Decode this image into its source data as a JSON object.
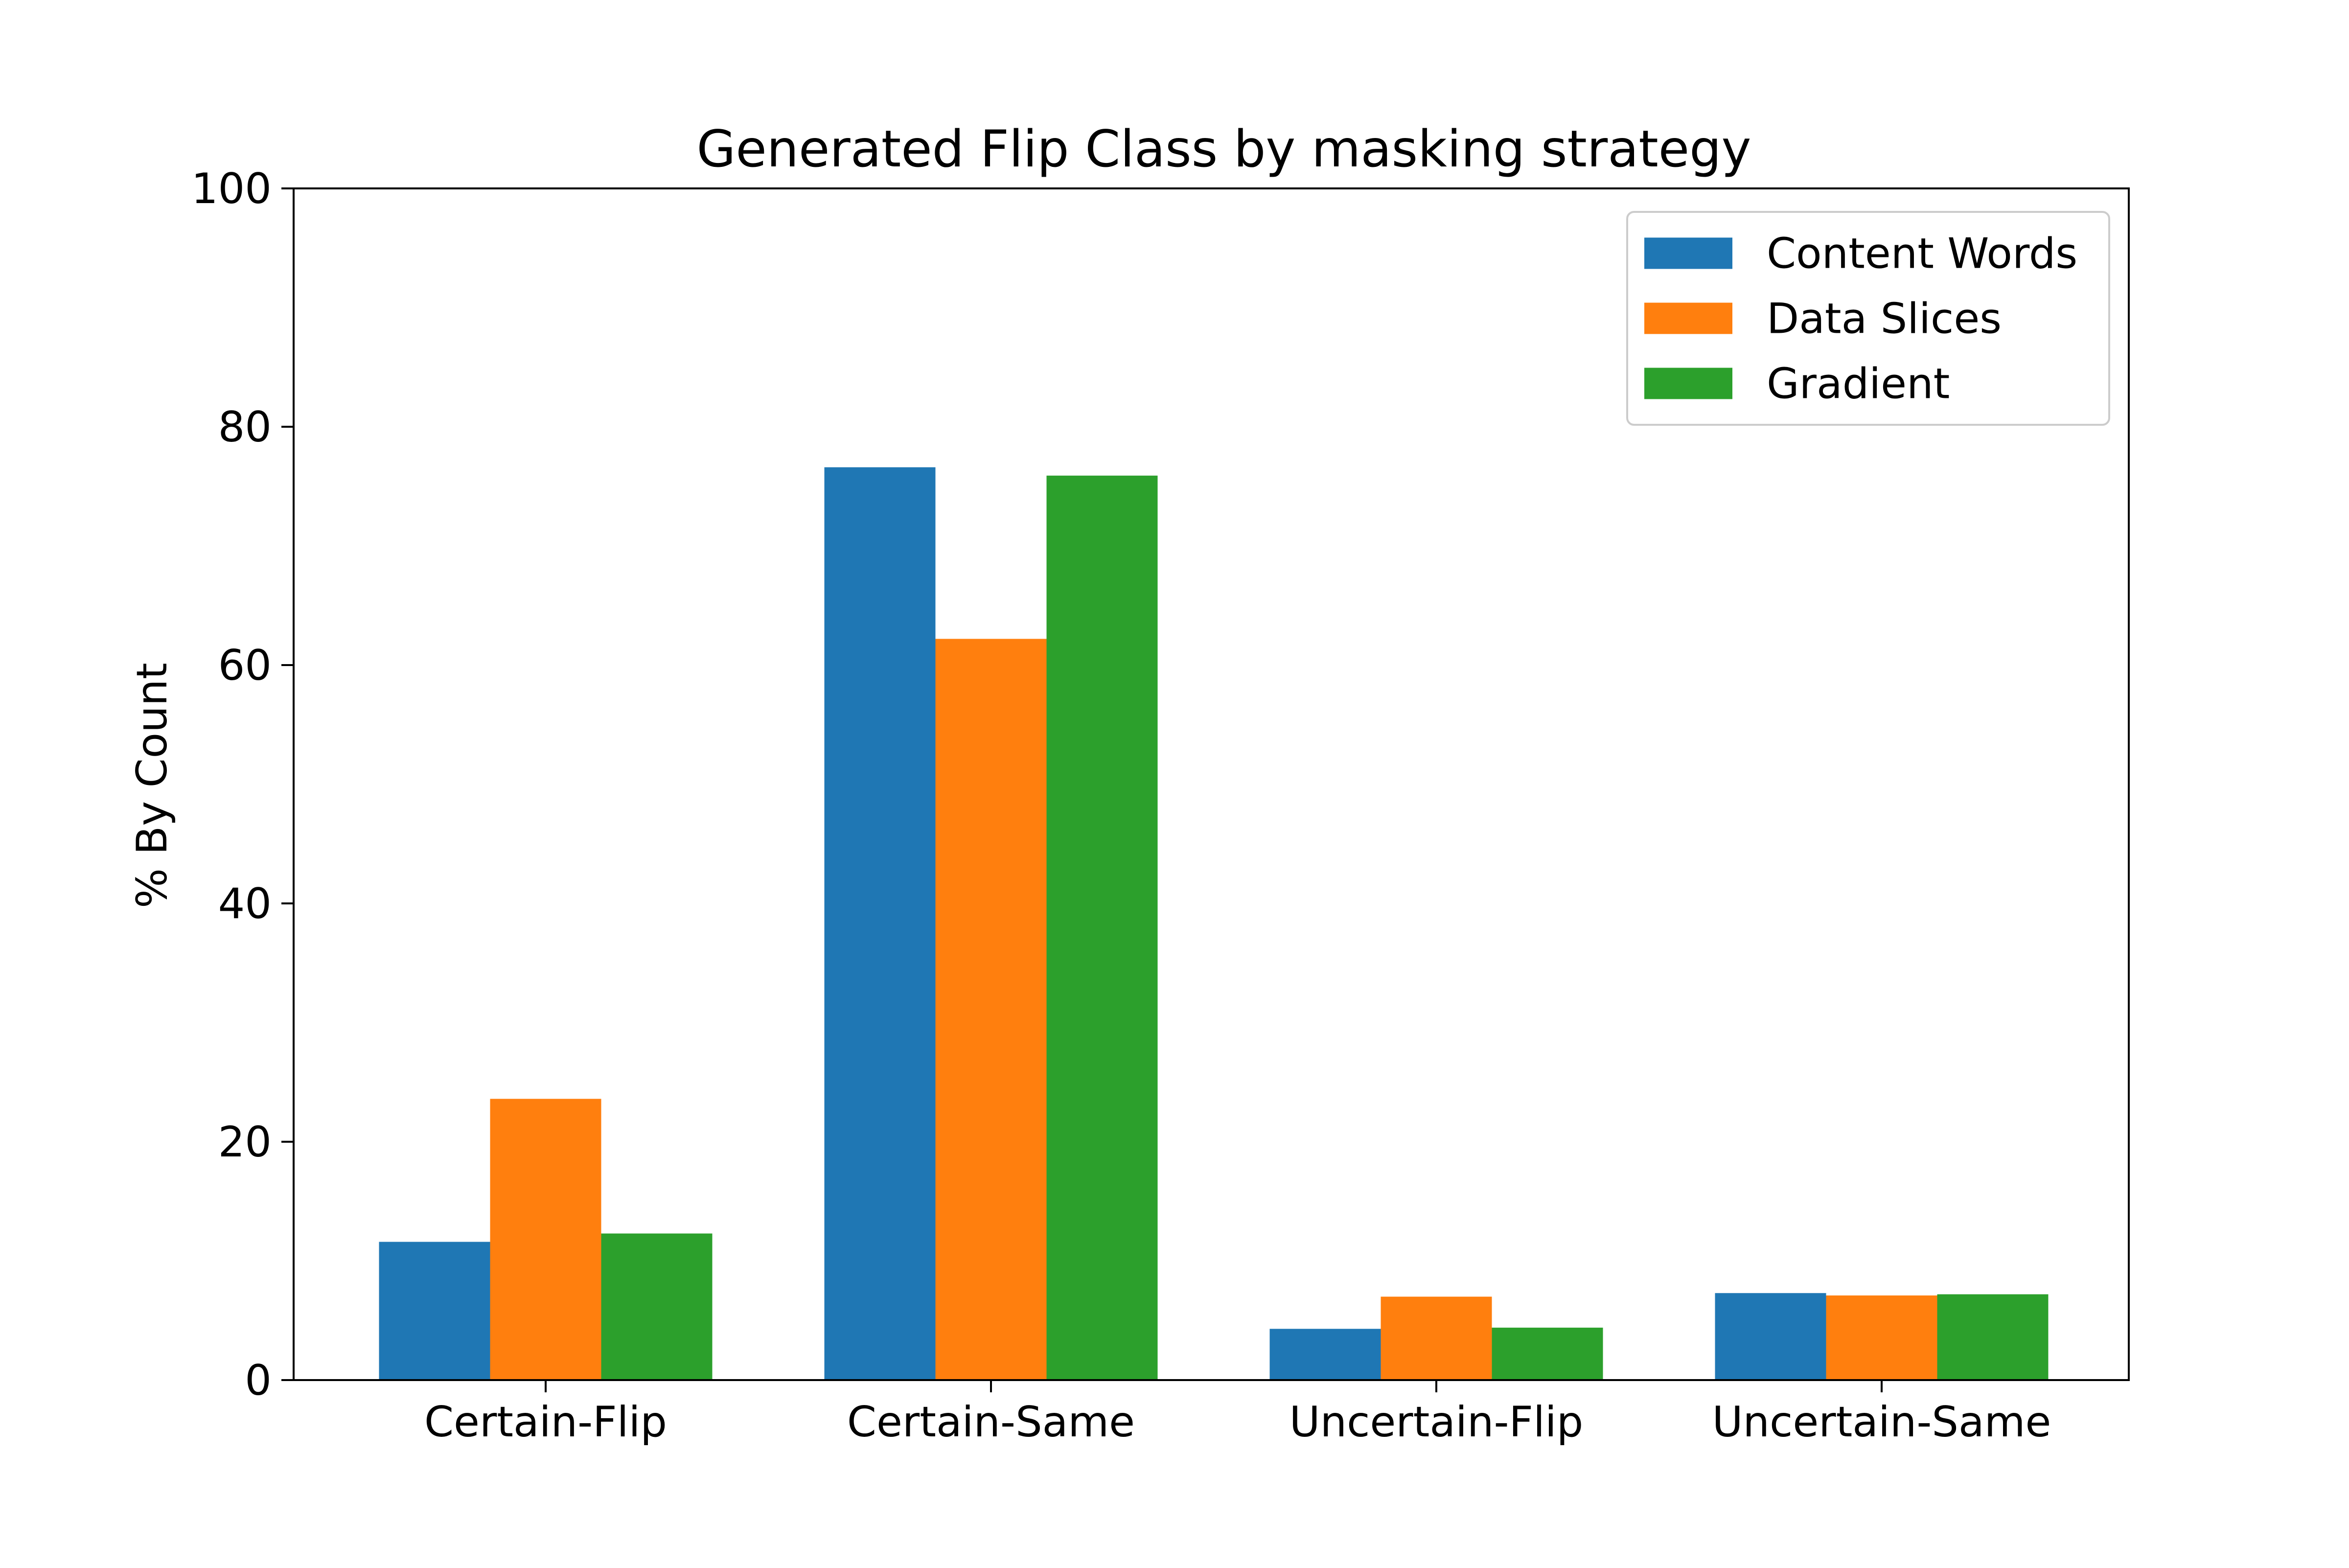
{
  "chart_data": {
    "type": "bar",
    "title": "Generated Flip Class by masking strategy",
    "xlabel": "",
    "ylabel": "% By Count",
    "ylim": [
      0,
      100
    ],
    "yticks": [
      0,
      20,
      40,
      60,
      80,
      100
    ],
    "categories": [
      "Certain-Flip",
      "Certain-Same",
      "Uncertain-Flip",
      "Uncertain-Same"
    ],
    "series": [
      {
        "name": "Content Words",
        "color": "#1f77b4",
        "values": [
          11.6,
          76.6,
          4.3,
          7.3
        ]
      },
      {
        "name": "Data Slices",
        "color": "#ff7f0e",
        "values": [
          23.6,
          62.2,
          7.0,
          7.1
        ]
      },
      {
        "name": "Gradient",
        "color": "#2ca02c",
        "values": [
          12.3,
          75.9,
          4.4,
          7.2
        ]
      }
    ],
    "legend_position": "top-right",
    "grid": false
  }
}
